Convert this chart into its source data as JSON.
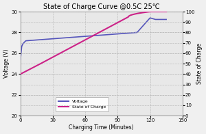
{
  "title": "State of Charge Curve @0.5C 25℃",
  "xlabel": "Charging Time (Minutes)",
  "ylabel_left": "Voltage (V)",
  "ylabel_right": "State of Charge",
  "xlim": [
    0,
    150
  ],
  "ylim_left": [
    20.0,
    30.0
  ],
  "ylim_right": [
    0,
    100
  ],
  "xticks": [
    0,
    30,
    60,
    90,
    120,
    150
  ],
  "yticks_left": [
    20.0,
    22.0,
    24.0,
    26.0,
    28.0,
    30.0
  ],
  "yticks_right": [
    0,
    10,
    20,
    30,
    40,
    50,
    60,
    70,
    80,
    90,
    100
  ],
  "voltage_color": "#5555bb",
  "soc_color": "#cc2288",
  "legend_voltage": "Voltage",
  "legend_soc": "State of Charge",
  "bg_color": "#f0f0f0",
  "plot_bg": "#e8e8e8",
  "grid_color": "#bbbbbb",
  "title_fontsize": 7,
  "label_fontsize": 5.5,
  "tick_fontsize": 5,
  "legend_fontsize": 4.5
}
